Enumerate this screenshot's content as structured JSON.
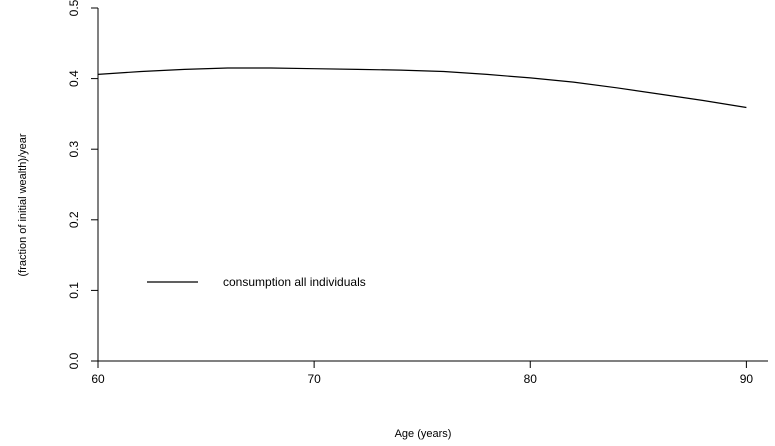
{
  "chart_data": {
    "type": "line",
    "title": "",
    "xlabel": "Age (years)",
    "ylabel": "(fraction of initial wealth)/year",
    "xlim": [
      60,
      91
    ],
    "ylim": [
      0,
      0.5
    ],
    "xticks": [
      60,
      70,
      80,
      90
    ],
    "yticks": [
      0.0,
      0.1,
      0.2,
      0.3,
      0.4,
      0.5
    ],
    "xtick_labels": [
      "60",
      "70",
      "80",
      "90"
    ],
    "ytick_labels": [
      "0.0",
      "0.1",
      "0.2",
      "0.3",
      "0.4",
      "0.5"
    ],
    "grid": false,
    "legend_position": "left-center",
    "line_color": "#000000",
    "series": [
      {
        "name": "consumption all individuals",
        "x": [
          60,
          62,
          64,
          66,
          68,
          70,
          72,
          74,
          76,
          78,
          80,
          82,
          84,
          86,
          88,
          90
        ],
        "y": [
          0.406,
          0.41,
          0.413,
          0.415,
          0.415,
          0.414,
          0.413,
          0.412,
          0.41,
          0.406,
          0.401,
          0.395,
          0.387,
          0.378,
          0.369,
          0.359
        ]
      }
    ]
  }
}
